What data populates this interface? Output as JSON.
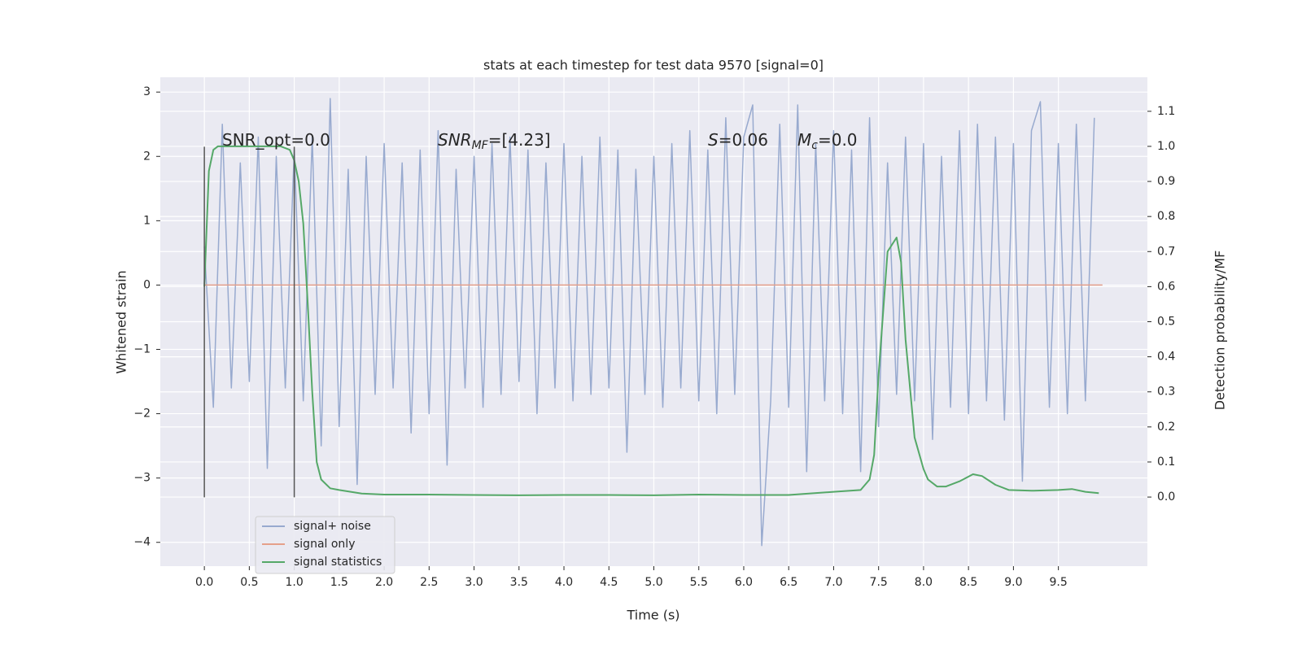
{
  "chart_data": {
    "type": "line",
    "title": "stats at each timestep for test data 9570 [signal=0]",
    "x_label": "Time (s)",
    "y_label": "Whitened strain",
    "y2_label": "Detection probability/MF",
    "annotations": [
      {
        "parts": [
          "SNR_opt=0.0"
        ]
      },
      {
        "parts": [
          "SNR",
          "MF",
          "=[4.23]"
        ]
      },
      {
        "parts": [
          "S",
          "=0.06"
        ]
      },
      {
        "parts": [
          "M",
          "c",
          "=0.0"
        ]
      }
    ],
    "series": [
      {
        "name": "signal+ noise",
        "color": "#98aacf",
        "x": [
          0.0,
          0.1,
          0.2,
          0.3,
          0.4,
          0.5,
          0.6,
          0.7,
          0.8,
          0.9,
          1.0,
          1.1,
          1.2,
          1.3,
          1.4,
          1.5,
          1.6,
          1.7,
          1.8,
          1.9,
          2.0,
          2.1,
          2.2,
          2.3,
          2.4,
          2.5,
          2.6,
          2.7,
          2.8,
          2.9,
          3.0,
          3.1,
          3.2,
          3.3,
          3.4,
          3.5,
          3.6,
          3.7,
          3.8,
          3.9,
          4.0,
          4.1,
          4.2,
          4.3,
          4.4,
          4.5,
          4.6,
          4.7,
          4.8,
          4.9,
          5.0,
          5.1,
          5.2,
          5.3,
          5.4,
          5.5,
          5.6,
          5.7,
          5.8,
          5.9,
          6.0,
          6.1,
          6.2,
          6.3,
          6.4,
          6.5,
          6.6,
          6.7,
          6.8,
          6.9,
          7.0,
          7.1,
          7.2,
          7.3,
          7.4,
          7.5,
          7.6,
          7.7,
          7.8,
          7.9,
          8.0,
          8.1,
          8.2,
          8.3,
          8.4,
          8.5,
          8.6,
          8.7,
          8.8,
          8.9,
          9.0,
          9.1,
          9.2,
          9.3,
          9.4,
          9.5,
          9.6,
          9.7,
          9.8,
          9.9
        ],
        "values": [
          0.6,
          -1.9,
          2.5,
          -1.6,
          1.9,
          -1.5,
          2.3,
          -2.85,
          2.0,
          -1.6,
          2.1,
          -1.8,
          2.3,
          -2.5,
          2.9,
          -2.2,
          1.8,
          -3.1,
          2.0,
          -1.7,
          2.2,
          -1.6,
          1.9,
          -2.3,
          2.1,
          -2.0,
          2.4,
          -2.8,
          1.8,
          -1.6,
          2.0,
          -1.9,
          2.2,
          -1.7,
          2.3,
          -1.5,
          2.1,
          -2.0,
          1.9,
          -1.6,
          2.2,
          -1.8,
          2.0,
          -1.7,
          2.3,
          -1.6,
          2.1,
          -2.6,
          1.8,
          -1.7,
          2.0,
          -1.9,
          2.2,
          -1.6,
          2.4,
          -1.8,
          2.1,
          -2.0,
          2.6,
          -1.7,
          2.3,
          2.8,
          -4.05,
          -1.8,
          2.5,
          -1.9,
          2.8,
          -2.9,
          2.2,
          -1.8,
          2.4,
          -2.0,
          2.1,
          -2.9,
          2.6,
          -2.2,
          1.9,
          -1.7,
          2.3,
          -1.8,
          2.2,
          -2.4,
          2.0,
          -1.9,
          2.4,
          -2.0,
          2.5,
          -1.8,
          2.3,
          -2.1,
          2.2,
          -3.05,
          2.4,
          2.85,
          -1.9,
          2.2,
          -2.0,
          2.5,
          -1.8,
          2.6
        ]
      },
      {
        "name": "signal only",
        "color": "#e5a08a",
        "x": [
          0,
          9.99
        ],
        "values": [
          0,
          0
        ]
      },
      {
        "name": "signal statistics",
        "color": "#55a868",
        "axis": "y2",
        "x": [
          0,
          0.05,
          0.1,
          0.15,
          0.3,
          0.6,
          0.85,
          0.95,
          1.0,
          1.05,
          1.1,
          1.15,
          1.2,
          1.25,
          1.3,
          1.4,
          1.5,
          1.75,
          2.0,
          2.5,
          3.0,
          3.5,
          4.0,
          4.5,
          5.0,
          5.5,
          6.0,
          6.5,
          7.0,
          7.3,
          7.4,
          7.45,
          7.5,
          7.6,
          7.7,
          7.75,
          7.8,
          7.9,
          8.0,
          8.05,
          8.15,
          8.25,
          8.4,
          8.55,
          8.65,
          8.8,
          8.95,
          9.2,
          9.5,
          9.65,
          9.8,
          9.95
        ],
        "values": [
          0.6,
          0.93,
          0.99,
          1.0,
          1.0,
          1.0,
          1.0,
          0.99,
          0.96,
          0.9,
          0.78,
          0.55,
          0.3,
          0.1,
          0.05,
          0.025,
          0.02,
          0.01,
          0.007,
          0.007,
          0.006,
          0.005,
          0.006,
          0.006,
          0.005,
          0.007,
          0.006,
          0.006,
          0.015,
          0.02,
          0.05,
          0.12,
          0.35,
          0.7,
          0.74,
          0.67,
          0.45,
          0.17,
          0.08,
          0.05,
          0.03,
          0.03,
          0.045,
          0.065,
          0.06,
          0.035,
          0.02,
          0.018,
          0.02,
          0.023,
          0.015,
          0.011
        ]
      }
    ],
    "vlines": {
      "x": [
        0,
        1
      ],
      "ymin": -3.3,
      "ymax": 2.15,
      "color": "#555555"
    },
    "xlim": [
      -0.49,
      10.49
    ],
    "ylim": [
      -4.37,
      3.23
    ],
    "y2lim": [
      -0.197,
      1.197
    ],
    "xticks": [
      {
        "value": 0,
        "label": "0.0"
      },
      {
        "value": 0.5,
        "label": "0.5"
      },
      {
        "value": 1,
        "label": "1.0"
      },
      {
        "value": 1.5,
        "label": "1.5"
      },
      {
        "value": 2,
        "label": "2.0"
      },
      {
        "value": 2.5,
        "label": "2.5"
      },
      {
        "value": 3,
        "label": "3.0"
      },
      {
        "value": 3.5,
        "label": "3.5"
      },
      {
        "value": 4,
        "label": "4.0"
      },
      {
        "value": 4.5,
        "label": "4.5"
      },
      {
        "value": 5,
        "label": "5.0"
      },
      {
        "value": 5.5,
        "label": "5.5"
      },
      {
        "value": 6,
        "label": "6.0"
      },
      {
        "value": 6.5,
        "label": "6.5"
      },
      {
        "value": 7,
        "label": "7.0"
      },
      {
        "value": 7.5,
        "label": "7.5"
      },
      {
        "value": 8,
        "label": "8.0"
      },
      {
        "value": 8.5,
        "label": "8.5"
      },
      {
        "value": 9,
        "label": "9.0"
      },
      {
        "value": 9.5,
        "label": "9.5"
      }
    ],
    "yticks": [
      {
        "value": -4,
        "label": "−4"
      },
      {
        "value": -3,
        "label": "−3"
      },
      {
        "value": -2,
        "label": "−2"
      },
      {
        "value": -1,
        "label": "−1"
      },
      0,
      1,
      2,
      3
    ],
    "y2ticks": [
      {
        "value": 0,
        "label": "0.0"
      },
      {
        "value": 0.1,
        "label": "0.1"
      },
      {
        "value": 0.2,
        "label": "0.2"
      },
      {
        "value": 0.3,
        "label": "0.3"
      },
      {
        "value": 0.4,
        "label": "0.4"
      },
      {
        "value": 0.5,
        "label": "0.5"
      },
      {
        "value": 0.6,
        "label": "0.6"
      },
      {
        "value": 0.7,
        "label": "0.7"
      },
      {
        "value": 0.8,
        "label": "0.8"
      },
      {
        "value": 0.9,
        "label": "0.9"
      },
      {
        "value": 1,
        "label": "1.0"
      },
      {
        "value": 1.1,
        "label": "1.1"
      }
    ],
    "grid": true,
    "legend": "lower left",
    "background": "#eaeaf2"
  }
}
